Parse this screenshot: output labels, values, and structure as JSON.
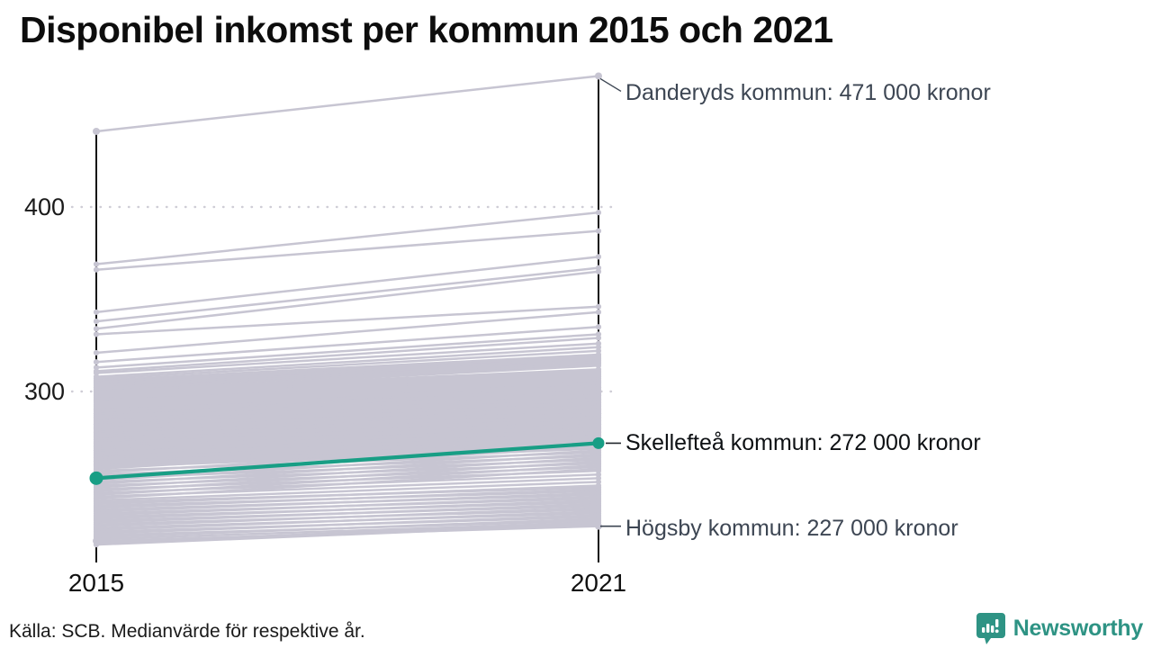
{
  "title": "Disponibel inkomst per kommun 2015 och 2021",
  "source_note": "Källa: SCB. Medianvärde för respektive år.",
  "branding": {
    "name": "Newsworthy",
    "color": "#2e9384",
    "icon": "newsworthy-bubble-chart-icon"
  },
  "chart_data": {
    "type": "line",
    "subtype": "slope-chart",
    "x_categories": [
      "2015",
      "2021"
    ],
    "y_ticks": [
      {
        "label": "400",
        "value": 400
      },
      {
        "label": "300",
        "value": 300
      }
    ],
    "y_unit": "tusen kronor",
    "grid": "dotted-horizontal",
    "line_color": "#c7c5d2",
    "highlight_color": "#189e85",
    "axis_color": "#111111",
    "annotation_color": "#3d4653",
    "labeled_series": [
      {
        "name": "Danderyds kommun",
        "values": [
          441,
          471
        ],
        "label": "Danderyds kommun: 471 000 kronor",
        "highlight": false
      },
      {
        "name": "Skellefteå kommun",
        "values": [
          253,
          272
        ],
        "label": "Skellefteå kommun: 272 000 kronor",
        "highlight": true
      },
      {
        "name": "Högsby kommun",
        "values": [
          219,
          227
        ],
        "label": "Högsby kommun: 227 000 kronor",
        "highlight": false
      }
    ],
    "background_series": [
      [
        369,
        397
      ],
      [
        366,
        387
      ],
      [
        343,
        373
      ],
      [
        338,
        367
      ],
      [
        334,
        365
      ],
      [
        331,
        346
      ],
      [
        321,
        343
      ],
      [
        316,
        335
      ],
      [
        313,
        331
      ],
      [
        311,
        329
      ],
      [
        310,
        326
      ],
      [
        308,
        324
      ],
      [
        307,
        322
      ],
      [
        306,
        320
      ],
      [
        305,
        319
      ],
      [
        304,
        318
      ],
      [
        303,
        317
      ],
      [
        302,
        316
      ],
      [
        301,
        315
      ],
      [
        300,
        314
      ],
      [
        300,
        312
      ],
      [
        299,
        311
      ],
      [
        298,
        310
      ],
      [
        297,
        309
      ],
      [
        296,
        308
      ],
      [
        295,
        307
      ],
      [
        295,
        306
      ],
      [
        294,
        305
      ],
      [
        293,
        304
      ],
      [
        292,
        303
      ],
      [
        291,
        302
      ],
      [
        290,
        301
      ],
      [
        290,
        300
      ],
      [
        289,
        299
      ],
      [
        288,
        305
      ],
      [
        288,
        298
      ],
      [
        287,
        297
      ],
      [
        286,
        302
      ],
      [
        286,
        296
      ],
      [
        285,
        295
      ],
      [
        284,
        300
      ],
      [
        284,
        294
      ],
      [
        283,
        293
      ],
      [
        282,
        298
      ],
      [
        282,
        292
      ],
      [
        281,
        291
      ],
      [
        280,
        296
      ],
      [
        280,
        290
      ],
      [
        279,
        289
      ],
      [
        278,
        294
      ],
      [
        278,
        288
      ],
      [
        277,
        287
      ],
      [
        276,
        292
      ],
      [
        276,
        286
      ],
      [
        275,
        285
      ],
      [
        274,
        290
      ],
      [
        274,
        284
      ],
      [
        273,
        283
      ],
      [
        272,
        288
      ],
      [
        272,
        282
      ],
      [
        271,
        281
      ],
      [
        270,
        286
      ],
      [
        270,
        280
      ],
      [
        269,
        279
      ],
      [
        268,
        284
      ],
      [
        268,
        278
      ],
      [
        267,
        277
      ],
      [
        266,
        282
      ],
      [
        266,
        276
      ],
      [
        265,
        275
      ],
      [
        264,
        280
      ],
      [
        264,
        274
      ],
      [
        263,
        273
      ],
      [
        262,
        278
      ],
      [
        262,
        272
      ],
      [
        261,
        271
      ],
      [
        260,
        276
      ],
      [
        260,
        270
      ],
      [
        259,
        269
      ],
      [
        258,
        274
      ],
      [
        257,
        267
      ],
      [
        256,
        272
      ],
      [
        255,
        265
      ],
      [
        254,
        270
      ],
      [
        253,
        263
      ],
      [
        252,
        268
      ],
      [
        251,
        261
      ],
      [
        250,
        266
      ],
      [
        249,
        259
      ],
      [
        248,
        264
      ],
      [
        247,
        257
      ],
      [
        246,
        262
      ],
      [
        245,
        255
      ],
      [
        244,
        260
      ],
      [
        243,
        253
      ],
      [
        242,
        258
      ],
      [
        241,
        251
      ],
      [
        240,
        248
      ],
      [
        239,
        249
      ],
      [
        238,
        246
      ],
      [
        237,
        247
      ],
      [
        236,
        244
      ],
      [
        235,
        245
      ],
      [
        234,
        242
      ],
      [
        233,
        243
      ],
      [
        232,
        240
      ],
      [
        231,
        241
      ],
      [
        230,
        238
      ],
      [
        229,
        239
      ],
      [
        228,
        236
      ],
      [
        227,
        237
      ],
      [
        226,
        234
      ],
      [
        225,
        235
      ],
      [
        224,
        232
      ],
      [
        223,
        233
      ],
      [
        222,
        230
      ],
      [
        221,
        231
      ],
      [
        220,
        229
      ],
      [
        218,
        229
      ],
      [
        217,
        228
      ]
    ]
  }
}
